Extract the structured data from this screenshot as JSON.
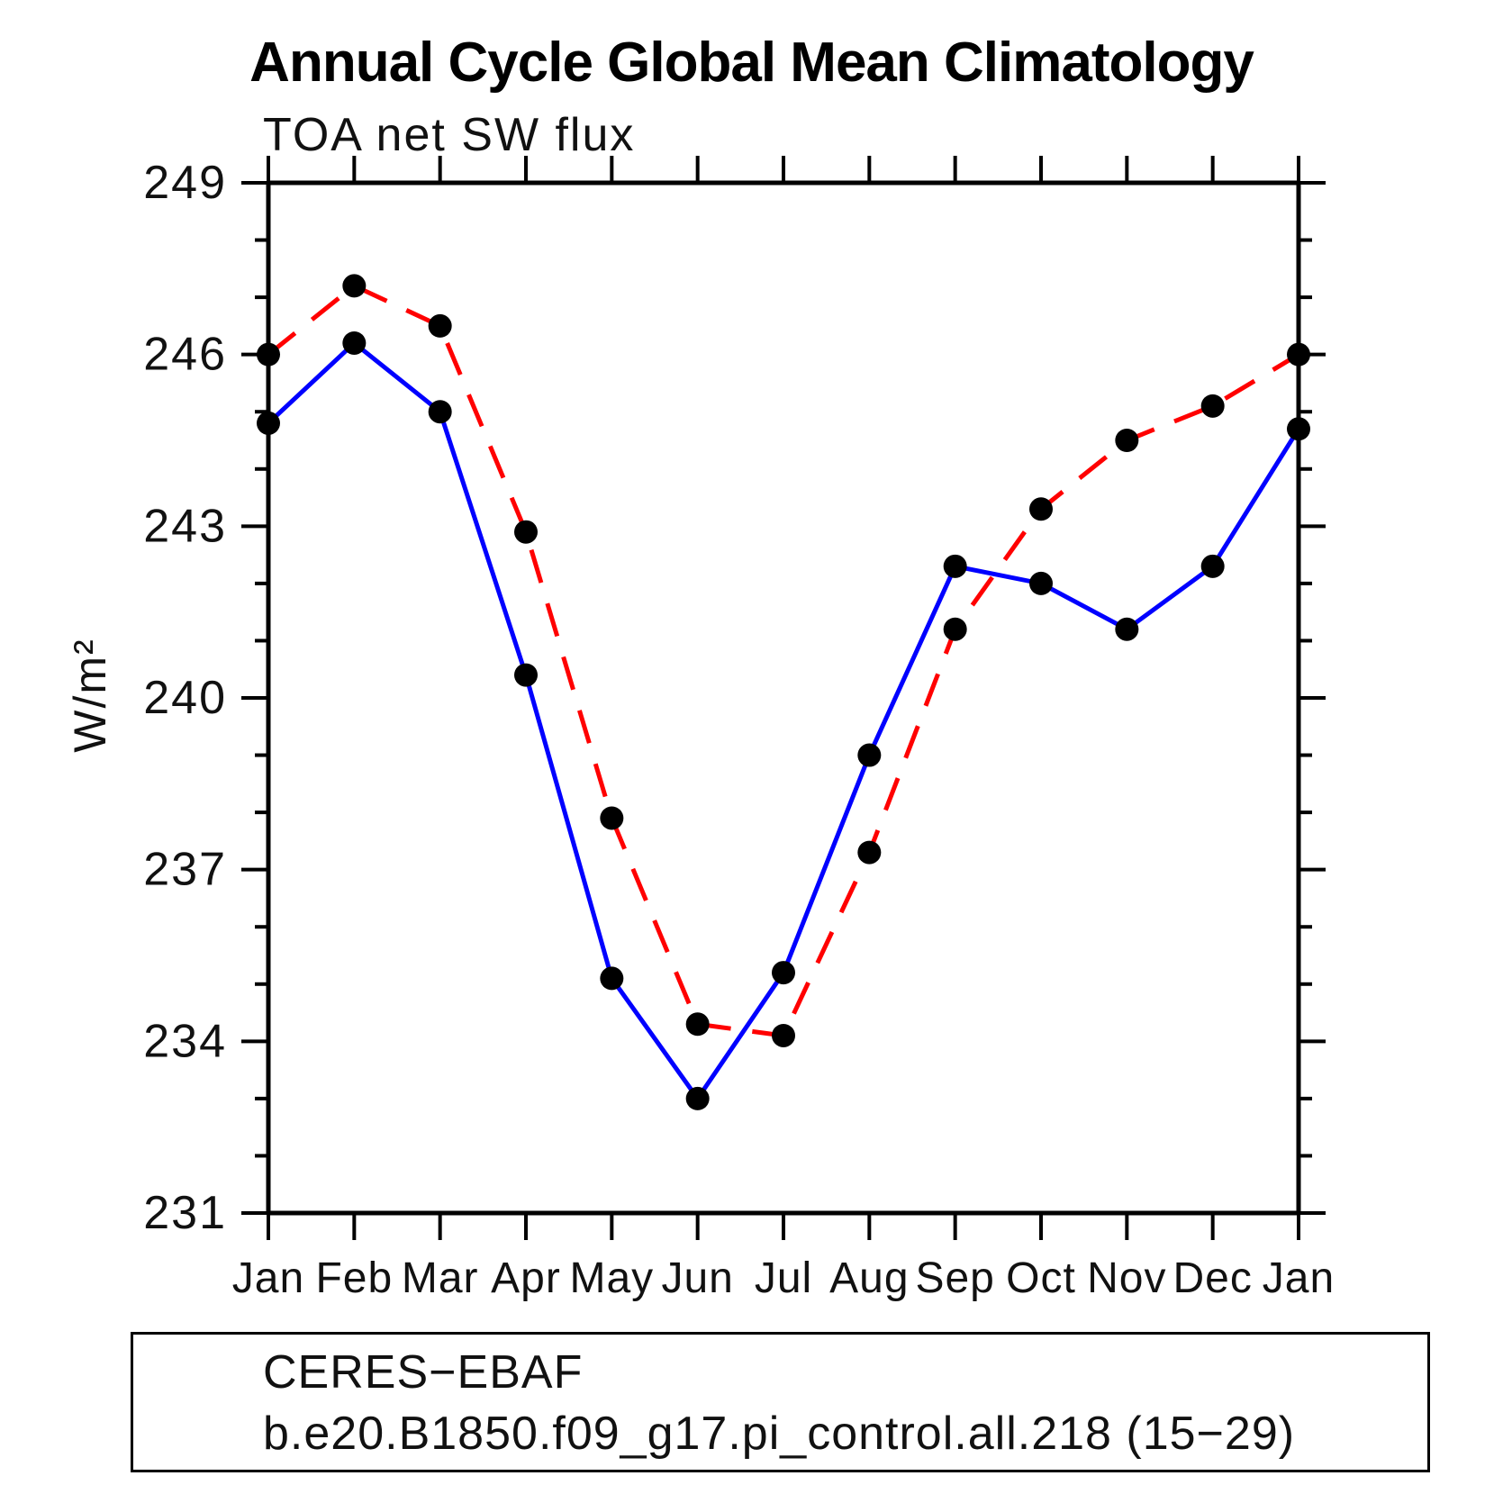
{
  "header": {
    "title": "Annual Cycle Global Mean Climatology",
    "subtitle": "TOA net SW flux"
  },
  "chart_data": {
    "type": "line",
    "title": "Annual Cycle Global Mean Climatology",
    "subtitle": "TOA net SW flux",
    "xlabel": "",
    "ylabel": "W/m²",
    "ylim": [
      231,
      249
    ],
    "ytick_step": 3,
    "ytick_labels": [
      "231",
      "234",
      "237",
      "240",
      "243",
      "246",
      "249"
    ],
    "grid": false,
    "legend_position": "bottom-left-box",
    "categories": [
      "Jan",
      "Feb",
      "Mar",
      "Apr",
      "May",
      "Jun",
      "Jul",
      "Aug",
      "Sep",
      "Oct",
      "Nov",
      "Dec",
      "Jan"
    ],
    "series": [
      {
        "name": "CERES−EBAF",
        "color": "#0000ff",
        "style": "solid",
        "marker": "filled-black-circle",
        "values": [
          244.8,
          246.2,
          245.0,
          240.4,
          235.1,
          233.0,
          235.2,
          239.0,
          242.3,
          242.0,
          241.2,
          242.3,
          244.7
        ]
      },
      {
        "name": "b.e20.B1850.f09_g17.pi_control.all.218 (15−29)",
        "color": "#ff0000",
        "style": "dashed",
        "marker": "filled-black-circle",
        "values": [
          246.0,
          247.2,
          246.5,
          242.9,
          237.9,
          234.3,
          234.1,
          237.3,
          241.2,
          243.3,
          244.5,
          245.1,
          246.0
        ]
      }
    ]
  },
  "legend": {
    "entries": [
      {
        "label": "CERES−EBAF"
      },
      {
        "label": "b.e20.B1850.f09_g17.pi_control.all.218 (15−29)"
      }
    ]
  }
}
